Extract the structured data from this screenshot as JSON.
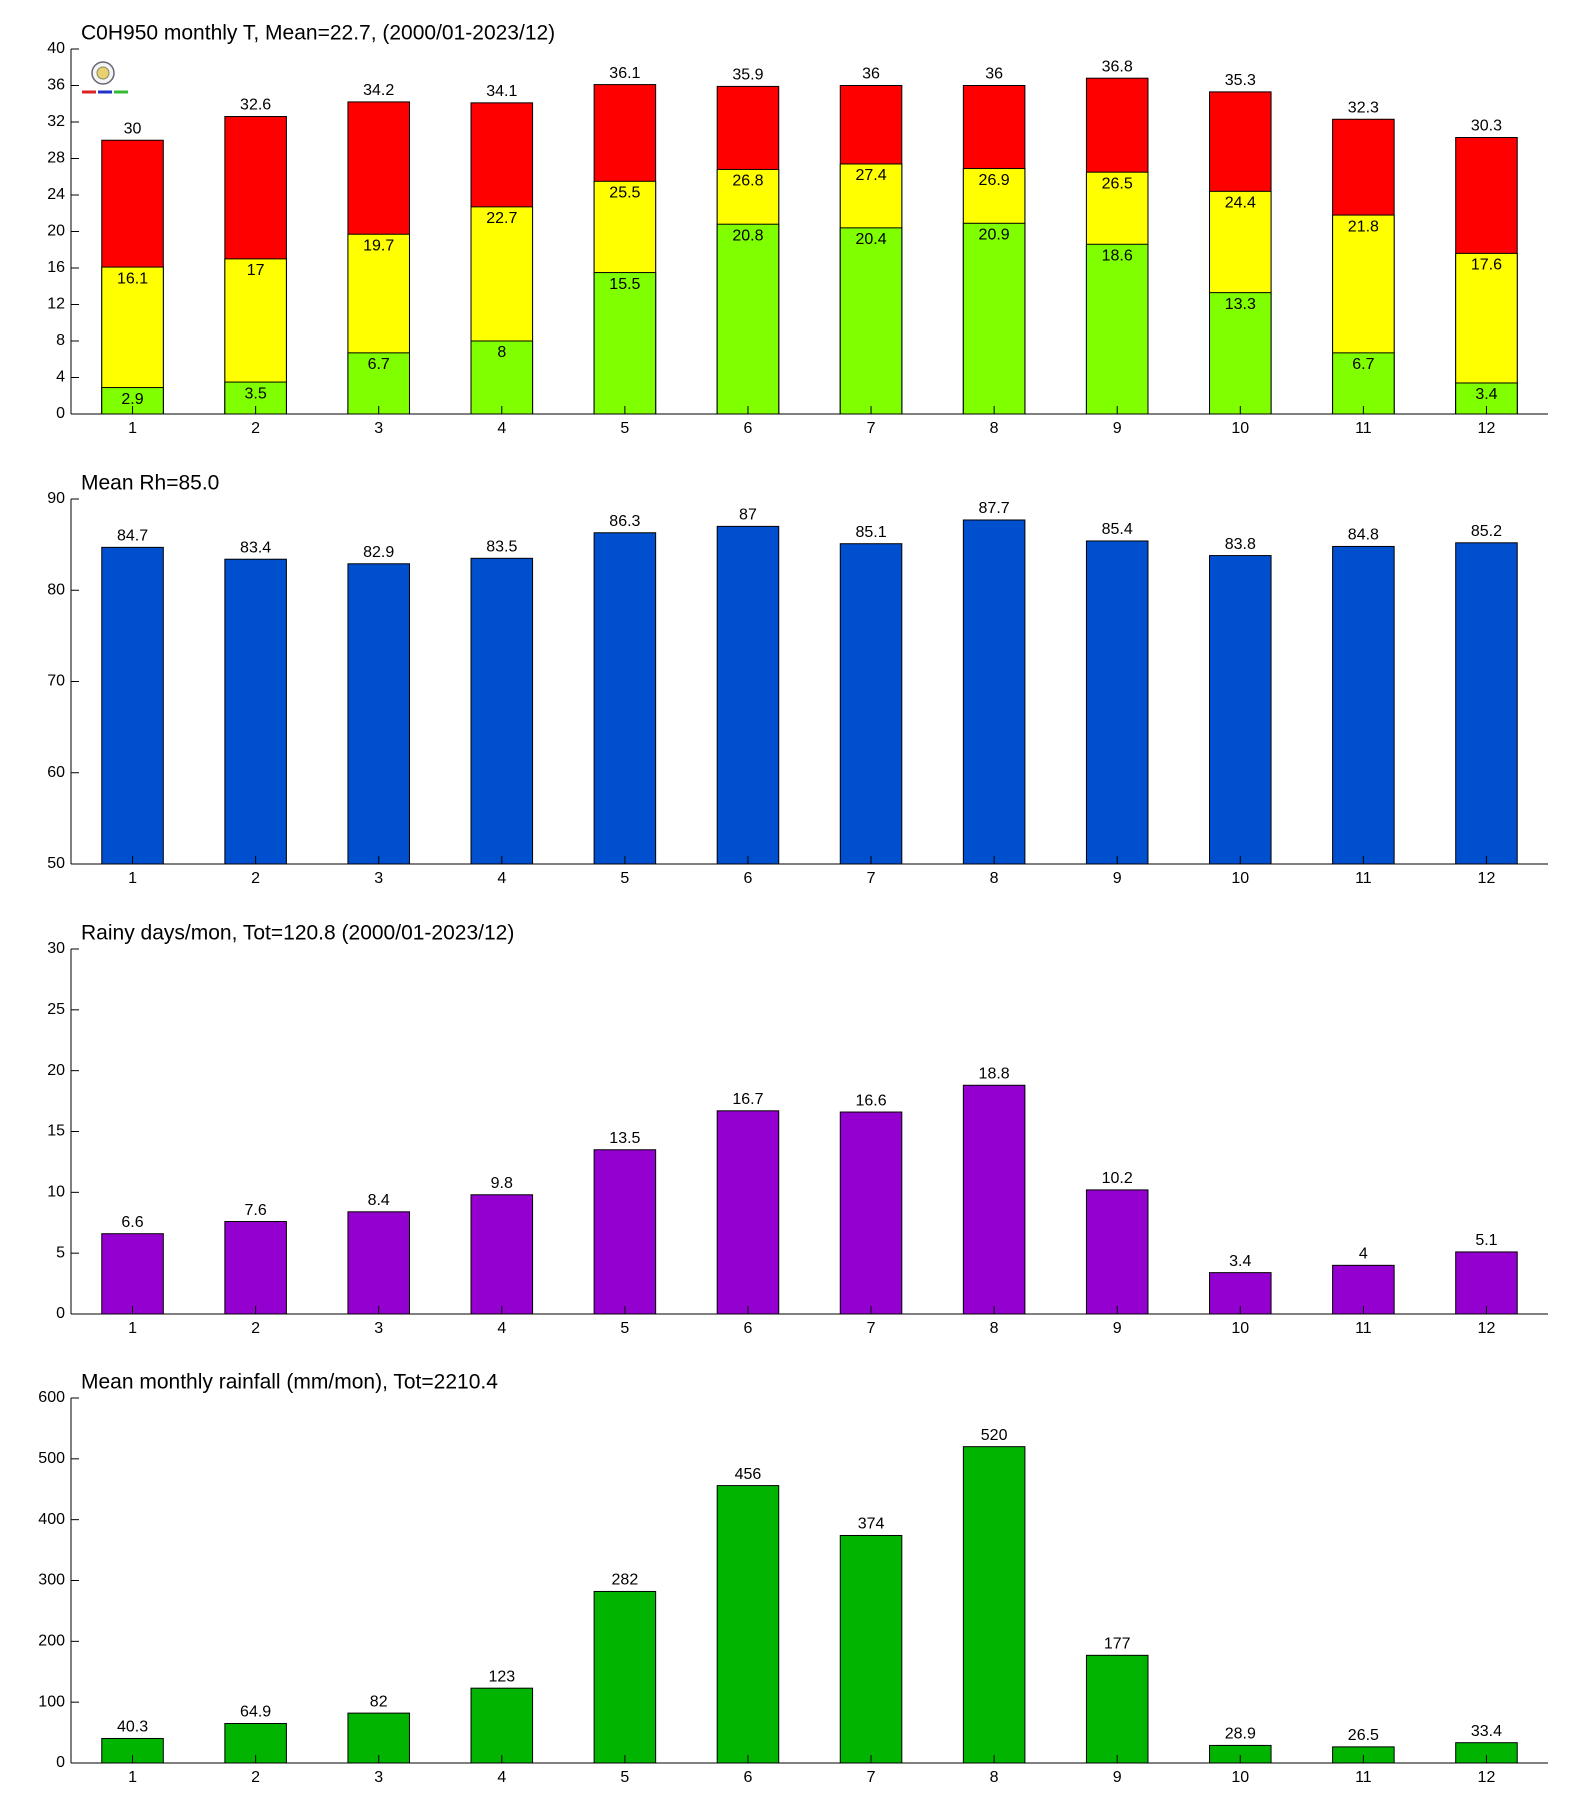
{
  "chart_data": [
    {
      "type": "bar",
      "title": "C0H950 monthly T, Mean=22.7, (2000/01-2023/12)",
      "categories": [
        "1",
        "2",
        "3",
        "4",
        "5",
        "6",
        "7",
        "8",
        "9",
        "10",
        "11",
        "12"
      ],
      "series": [
        {
          "color": "#ff0000",
          "values": [
            30,
            32.6,
            34.2,
            34.1,
            36.1,
            35.9,
            36,
            36,
            36.8,
            35.3,
            32.3,
            30.3
          ]
        },
        {
          "color": "#ffff00",
          "values": [
            16.1,
            17,
            19.7,
            22.7,
            25.5,
            26.8,
            27.4,
            26.9,
            26.5,
            24.4,
            21.8,
            17.6
          ]
        },
        {
          "color": "#80ff00",
          "values": [
            2.9,
            3.5,
            6.7,
            8,
            15.5,
            20.8,
            20.4,
            20.9,
            18.6,
            13.3,
            6.7,
            3.4
          ]
        }
      ],
      "ylim": [
        0,
        40
      ],
      "yticks": [
        0,
        4,
        8,
        12,
        16,
        20,
        24,
        28,
        32,
        36,
        40
      ]
    },
    {
      "type": "bar",
      "title": "Mean Rh=85.0",
      "categories": [
        "1",
        "2",
        "3",
        "4",
        "5",
        "6",
        "7",
        "8",
        "9",
        "10",
        "11",
        "12"
      ],
      "series": [
        {
          "color": "#004fcf",
          "values": [
            84.7,
            83.4,
            82.9,
            83.5,
            86.3,
            87,
            85.1,
            87.7,
            85.4,
            83.8,
            84.8,
            85.2
          ]
        }
      ],
      "ylim": [
        50,
        90
      ],
      "yticks": [
        50,
        60,
        70,
        80,
        90
      ]
    },
    {
      "type": "bar",
      "title": "Rainy days/mon, Tot=120.8 (2000/01-2023/12)",
      "categories": [
        "1",
        "2",
        "3",
        "4",
        "5",
        "6",
        "7",
        "8",
        "9",
        "10",
        "11",
        "12"
      ],
      "series": [
        {
          "color": "#9400cf",
          "values": [
            6.6,
            7.6,
            8.4,
            9.8,
            13.5,
            16.7,
            16.6,
            18.8,
            10.2,
            3.4,
            4,
            5.1
          ]
        }
      ],
      "ylim": [
        0,
        30
      ],
      "yticks": [
        0,
        5,
        10,
        15,
        20,
        25,
        30
      ]
    },
    {
      "type": "bar",
      "title": "Mean monthly rainfall (mm/mon), Tot=2210.4",
      "categories": [
        "1",
        "2",
        "3",
        "4",
        "5",
        "6",
        "7",
        "8",
        "9",
        "10",
        "11",
        "12"
      ],
      "series": [
        {
          "color": "#00b400",
          "values": [
            40.3,
            64.9,
            82,
            123,
            282,
            456,
            374,
            520,
            177,
            28.9,
            26.5,
            33.4
          ]
        }
      ],
      "ylim": [
        0,
        600
      ],
      "yticks": [
        0,
        100,
        200,
        300,
        400,
        500,
        600
      ]
    }
  ]
}
